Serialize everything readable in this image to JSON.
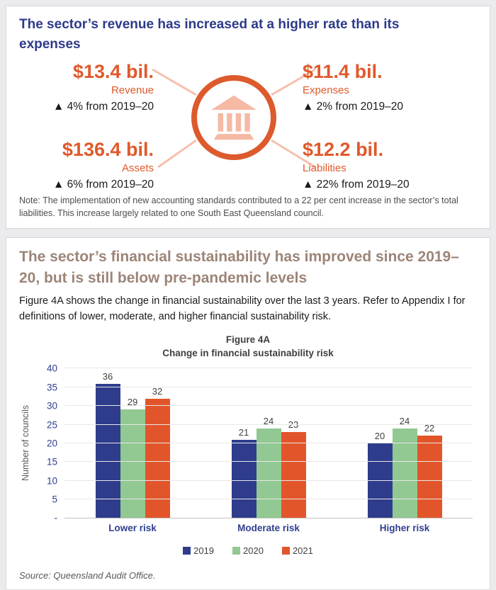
{
  "panel_revenue": {
    "heading": "The sector’s revenue has increased at a higher rate than its expenses",
    "stats": {
      "revenue": {
        "value": "$13.4 bil.",
        "label": "Revenue",
        "delta": "▲ 4% from 2019–20"
      },
      "expenses": {
        "value": "$11.4 bil.",
        "label": "Expenses",
        "delta": "▲ 2% from 2019–20"
      },
      "assets": {
        "value": "$136.4 bil.",
        "label": "Assets",
        "delta": "▲ 6% from 2019–20"
      },
      "liabilities": {
        "value": "$12.2 bil.",
        "label": "Liabilities",
        "delta": "▲ 22% from 2019–20"
      }
    },
    "center_icon": "bank-icon",
    "note": "Note: The implementation of new accounting standards contributed to a 22 per cent increase in the sector’s total liabilities. This increase largely related to one South East Queensland council."
  },
  "panel_sustainability": {
    "heading": "The sector’s financial sustainability has improved since 2019–20, but is still below pre-pandemic levels",
    "intro": "Figure 4A shows the change in financial sustainability over the last 3 years. Refer to Appendix I for definitions of lower, moderate, and higher financial sustainability risk.",
    "source": "Source: Queensland Audit Office."
  },
  "chart_data": {
    "type": "bar",
    "title": "Figure 4A",
    "subtitle": "Change in financial sustainability risk",
    "categories": [
      "Lower risk",
      "Moderate risk",
      "Higher risk"
    ],
    "series": [
      {
        "name": "2019",
        "color": "#2e3c8b",
        "values": [
          36,
          21,
          20
        ]
      },
      {
        "name": "2020",
        "color": "#92c892",
        "values": [
          29,
          24,
          24
        ]
      },
      {
        "name": "2021",
        "color": "#e2552b",
        "values": [
          32,
          23,
          22
        ]
      }
    ],
    "ylabel": "Number of councils",
    "ylim": [
      0,
      40
    ],
    "ytick_step": 5,
    "zero_tick_label": "-",
    "grid": true,
    "data_labels": true,
    "legend_position": "bottom"
  },
  "colors": {
    "accent_orange": "#e0592b",
    "ring_orange": "#dd5a2c",
    "salmon": "#f5b9a4",
    "heading_navy": "#2d3a8a",
    "heading_taupe": "#9c8577",
    "axis_navy": "#2f3f8f",
    "page_background": "#ebebee"
  }
}
